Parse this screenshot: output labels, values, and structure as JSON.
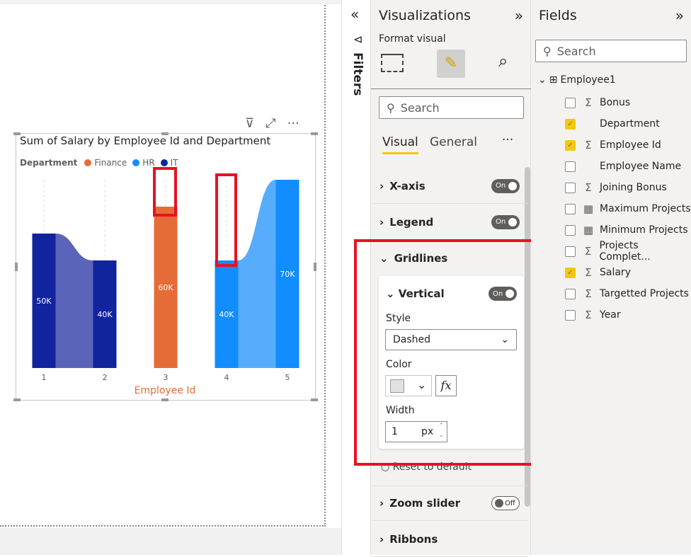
{
  "chart_data": {
    "type": "ribbon",
    "title": "Sum of Salary by Employee Id and Department",
    "legend_title": "Department",
    "legend": [
      {
        "name": "Finance",
        "color": "#e66c37"
      },
      {
        "name": "HR",
        "color": "#118dff"
      },
      {
        "name": "IT",
        "color": "#12239e"
      }
    ],
    "xlabel": "Employee Id",
    "categories": [
      "1",
      "2",
      "3",
      "4",
      "5"
    ],
    "points": [
      {
        "x": "1",
        "department": "IT",
        "value": 50000,
        "label": "50K"
      },
      {
        "x": "2",
        "department": "IT",
        "value": 40000,
        "label": "40K"
      },
      {
        "x": "3",
        "department": "Finance",
        "value": 60000,
        "label": "60K"
      },
      {
        "x": "4",
        "department": "HR",
        "value": 40000,
        "label": "40K"
      },
      {
        "x": "5",
        "department": "HR",
        "value": 70000,
        "label": "70K"
      }
    ],
    "ylim": [
      0,
      70000
    ],
    "vertical_gridlines": "dashed"
  },
  "visual_header": {
    "filter_icon": "filter-icon",
    "focus_icon": "focus-mode-icon",
    "more_icon": "more-options-icon"
  },
  "filters": {
    "label": "Filters"
  },
  "visualizations": {
    "title": "Visualizations",
    "subtitle": "Format visual",
    "search_placeholder": "Search",
    "tabs": [
      "Visual",
      "General"
    ],
    "sections": [
      {
        "label": "X-axis",
        "toggle": "On"
      },
      {
        "label": "Legend",
        "toggle": "On"
      },
      {
        "label": "Gridlines"
      },
      {
        "label": "Zoom slider",
        "toggle": "Off"
      },
      {
        "label": "Ribbons"
      }
    ],
    "vertical": {
      "label": "Vertical",
      "toggle": "On",
      "style_label": "Style",
      "style_value": "Dashed",
      "color_label": "Color",
      "color_value": "#e1e1e1",
      "fx": "fx",
      "width_label": "Width",
      "width_value": "1",
      "width_unit": "px"
    },
    "reset": "Reset to default"
  },
  "fields": {
    "title": "Fields",
    "search_placeholder": "Search",
    "table": "Employee1",
    "items": [
      {
        "label": "Bonus",
        "checked": false,
        "icon": "Σ"
      },
      {
        "label": "Department",
        "checked": true,
        "icon": ""
      },
      {
        "label": "Employee Id",
        "checked": true,
        "icon": "Σ"
      },
      {
        "label": "Employee Name",
        "checked": false,
        "icon": ""
      },
      {
        "label": "Joining Bonus",
        "checked": false,
        "icon": "Σ"
      },
      {
        "label": "Maximum Projects",
        "checked": false,
        "icon": "▦"
      },
      {
        "label": "Minimum Projects",
        "checked": false,
        "icon": "▦"
      },
      {
        "label": "Projects Complet...",
        "checked": false,
        "icon": "Σ"
      },
      {
        "label": "Salary",
        "checked": true,
        "icon": "Σ"
      },
      {
        "label": "Targetted Projects",
        "checked": false,
        "icon": "Σ"
      },
      {
        "label": "Year",
        "checked": false,
        "icon": "Σ"
      }
    ]
  }
}
